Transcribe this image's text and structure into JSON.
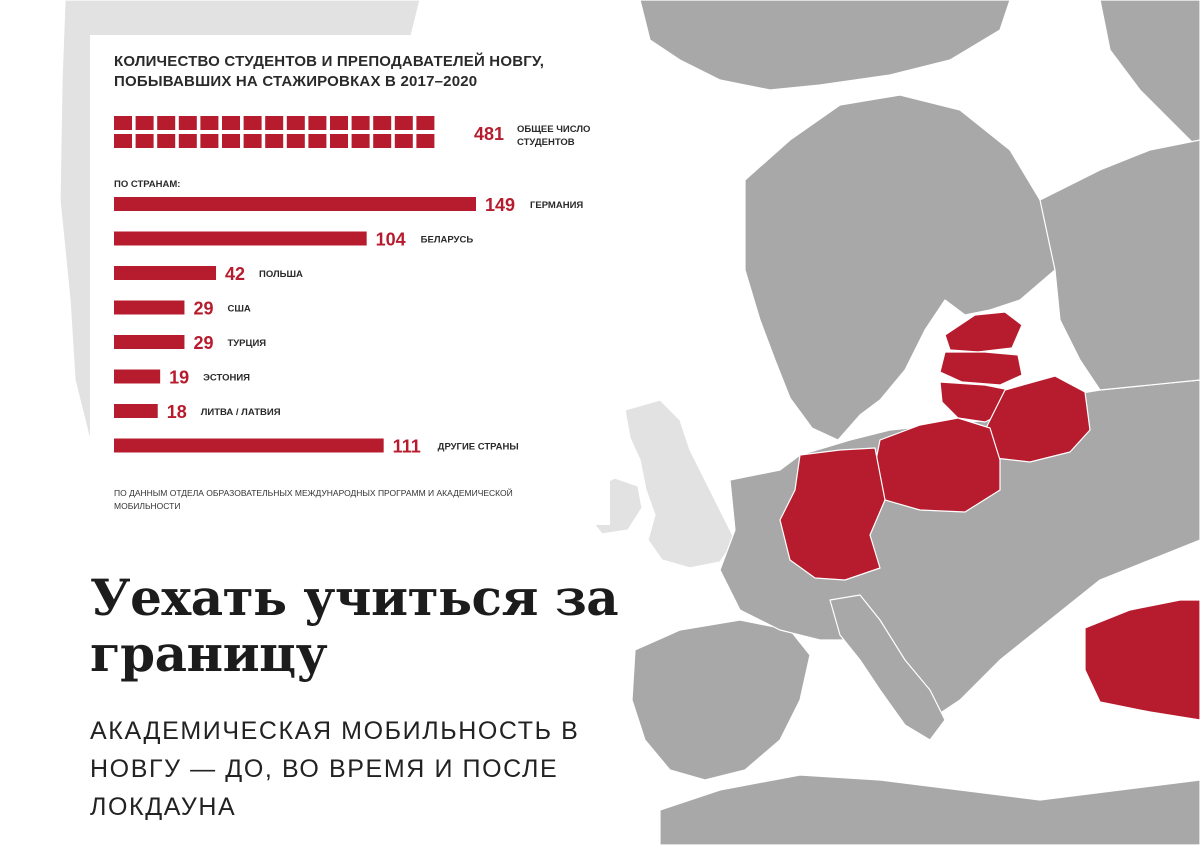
{
  "chart_data": {
    "type": "bar",
    "orientation": "horizontal",
    "title": "КОЛИЧЕСТВО СТУДЕНТОВ И ПРЕПОДАВАТЕЛЕЙ НОВГУ, ПОБЫВАВШИХ НА СТАЖИРОВКАХ В 2017–2020",
    "total": {
      "value": 481,
      "label": "ОБЩЕЕ ЧИСЛО СТУДЕНТОВ"
    },
    "section_label": "ПО СТРАНАМ:",
    "categories": [
      "ГЕРМАНИЯ",
      "БЕЛАРУСЬ",
      "ПОЛЬША",
      "США",
      "ТУРЦИЯ",
      "ЭСТОНИЯ",
      "ЛИТВА / ЛАТВИЯ",
      "ДРУГИЕ СТРАНЫ"
    ],
    "values": [
      149,
      104,
      42,
      29,
      29,
      19,
      18,
      111
    ],
    "source": "ПО ДАННЫМ ОТДЕЛА ОБРАЗОВАТЕЛЬНЫХ МЕЖДУНАРОДНЫХ ПРОГРАММ И АКАДЕМИЧЕСКОЙ МОБИЛЬНОСТИ",
    "colors": {
      "bar": "#b71c2e",
      "highlight_country": "#b71c2e",
      "land": "#a8a8a8",
      "land_light": "#e2e2e2",
      "sea": "#ffffff"
    }
  },
  "map": {
    "highlighted_countries": [
      "germany-region",
      "poland-region",
      "belarus-region",
      "lithuania-region",
      "latvia-region",
      "estonia-region",
      "turkey-region"
    ]
  },
  "article": {
    "headline": "Уехать учиться за границу",
    "subheadline": "АКАДЕМИЧЕСКАЯ МОБИЛЬНОСТЬ В НОВГУ — ДО, ВО ВРЕМЯ И ПОСЛЕ ЛОКДАУНА"
  }
}
